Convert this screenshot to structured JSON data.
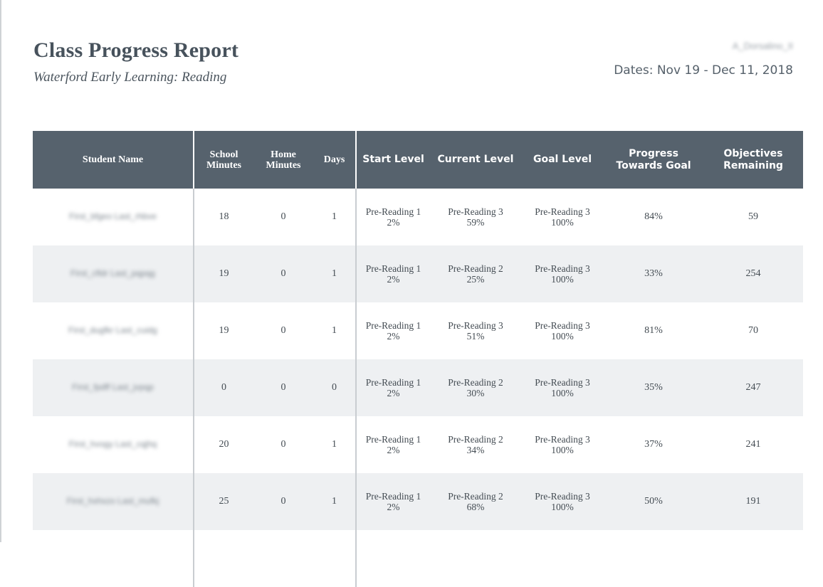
{
  "header": {
    "title": "Class Progress Report",
    "subtitle": "Waterford Early Learning: Reading",
    "author": "A_Dorsalino_II",
    "dates": "Dates: Nov 19 - Dec 11, 2018"
  },
  "table": {
    "columns": {
      "student_name": "Student Name",
      "school_minutes": "School Minutes",
      "home_minutes": "Home Minutes",
      "days": "Days",
      "start_level": "Start Level",
      "current_level": "Current Level",
      "goal_level": "Goal Level",
      "progress": "Progress Towards Goal",
      "objectives": "Objectives Remaining"
    },
    "rows": [
      {
        "name": "First_bfgeo Last_rhbve",
        "school": "18",
        "home": "0",
        "days": "1",
        "start_level": "Pre-Reading 1",
        "start_pct": "2%",
        "current_level": "Pre-Reading 3",
        "current_pct": "59%",
        "goal_level": "Pre-Reading 3",
        "goal_pct": "100%",
        "progress": "84%",
        "objectives": "59"
      },
      {
        "name": "First_cfldr Last_pqpqg",
        "school": "19",
        "home": "0",
        "days": "1",
        "start_level": "Pre-Reading 1",
        "start_pct": "2%",
        "current_level": "Pre-Reading 2",
        "current_pct": "25%",
        "goal_level": "Pre-Reading 3",
        "goal_pct": "100%",
        "progress": "33%",
        "objectives": "254"
      },
      {
        "name": "First_dugfkr Last_cuidg",
        "school": "19",
        "home": "0",
        "days": "1",
        "start_level": "Pre-Reading 1",
        "start_pct": "2%",
        "current_level": "Pre-Reading 3",
        "current_pct": "51%",
        "goal_level": "Pre-Reading 3",
        "goal_pct": "100%",
        "progress": "81%",
        "objectives": "70"
      },
      {
        "name": "First_fpdff Last_jvpqp",
        "school": "0",
        "home": "0",
        "days": "0",
        "start_level": "Pre-Reading 1",
        "start_pct": "2%",
        "current_level": "Pre-Reading 2",
        "current_pct": "30%",
        "goal_level": "Pre-Reading 3",
        "goal_pct": "100%",
        "progress": "35%",
        "objectives": "247"
      },
      {
        "name": "First_hvogy Last_cqjhq",
        "school": "20",
        "home": "0",
        "days": "1",
        "start_level": "Pre-Reading 1",
        "start_pct": "2%",
        "current_level": "Pre-Reading 2",
        "current_pct": "34%",
        "goal_level": "Pre-Reading 3",
        "goal_pct": "100%",
        "progress": "37%",
        "objectives": "241"
      },
      {
        "name": "First_hxhxzo Last_mufkj",
        "school": "25",
        "home": "0",
        "days": "1",
        "start_level": "Pre-Reading 1",
        "start_pct": "2%",
        "current_level": "Pre-Reading 2",
        "current_pct": "68%",
        "goal_level": "Pre-Reading 3",
        "goal_pct": "100%",
        "progress": "50%",
        "objectives": "191"
      }
    ]
  }
}
